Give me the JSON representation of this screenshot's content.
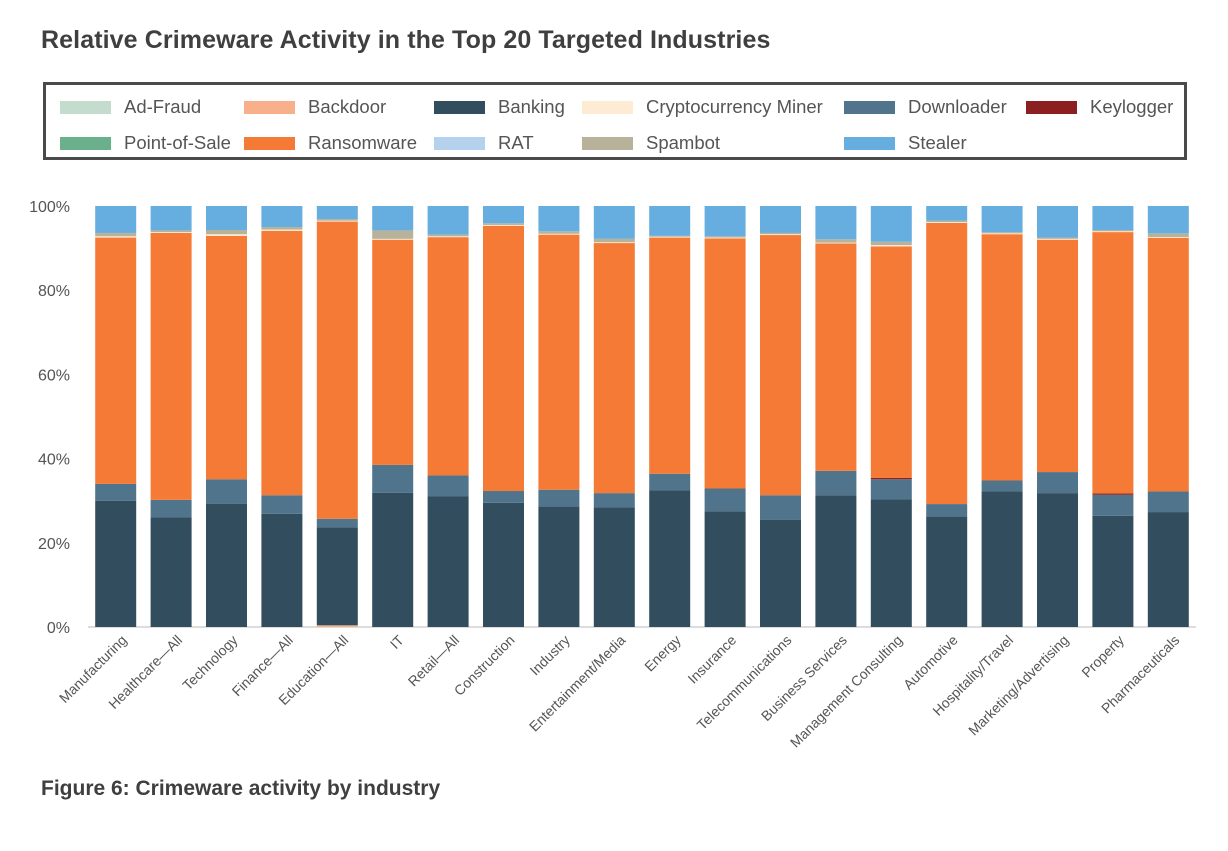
{
  "title": "Relative Crimeware Activity in the Top 20 Targeted Industries",
  "caption": "Figure 6: Crimeware activity by industry",
  "colors": {
    "Ad-Fraud": "#c3dccd",
    "Point-of-Sale": "#6ab08c",
    "Backdoor": "#f7b08a",
    "Ransomware": "#f47a36",
    "Banking": "#324d5e",
    "RAT": "#b4d1ee",
    "Cryptocurrency Miner": "#fdebd3",
    "Spambot": "#b8b29b",
    "Downloader": "#4f748c",
    "Keylogger": "#8c1f1f",
    "Stealer": "#66aee0"
  },
  "chart_data": {
    "type": "bar",
    "stacked": true,
    "title": "Relative Crimeware Activity in the Top 20 Targeted Industries",
    "xlabel": "",
    "ylabel": "",
    "ylim": [
      0,
      100
    ],
    "yticks": [
      "0%",
      "20%",
      "40%",
      "60%",
      "80%",
      "100%"
    ],
    "legend_position": "top",
    "legend_rows": [
      [
        "Ad-Fraud",
        "Backdoor",
        "Banking",
        "Cryptocurrency Miner",
        "Downloader",
        "Keylogger"
      ],
      [
        "Point-of-Sale",
        "Ransomware",
        "RAT",
        "Spambot",
        "Stealer"
      ]
    ],
    "categories": [
      "Manufacturing",
      "Healthcare—All",
      "Technology",
      "Finance—All",
      "Education—All",
      "IT",
      "Retail—All",
      "Construction",
      "Industry",
      "Entertainment/Media",
      "Energy",
      "Insurance",
      "Telecommunications",
      "Business Services",
      "Management Consulting",
      "Automotive",
      "Hospitality/Travel",
      "Marketing/Advertising",
      "Property",
      "Pharmaceuticals"
    ],
    "series": [
      {
        "name": "Backdoor",
        "values": [
          0,
          0,
          0,
          0,
          0.4,
          0,
          0,
          0,
          0,
          0,
          0,
          0,
          0,
          0,
          0,
          0,
          0,
          0,
          0,
          0
        ]
      },
      {
        "name": "Banking",
        "values": [
          30,
          26,
          29.3,
          26.9,
          23.3,
          31.9,
          31,
          29.5,
          28.6,
          28.4,
          32.5,
          27.5,
          25.5,
          31.3,
          30.3,
          26.3,
          32.2,
          31.8,
          26.4,
          27.3
        ]
      },
      {
        "name": "Downloader",
        "values": [
          4,
          4.2,
          5.8,
          4.4,
          2,
          6.6,
          5,
          2.8,
          4,
          3.4,
          3.9,
          5.4,
          5.8,
          5.8,
          4.8,
          2.9,
          2.6,
          5,
          5,
          4.9
        ]
      },
      {
        "name": "Keylogger",
        "values": [
          0,
          0,
          0,
          0,
          0,
          0,
          0,
          0,
          0,
          0,
          0,
          0,
          0,
          0,
          0.3,
          0,
          0,
          0,
          0.3,
          0
        ]
      },
      {
        "name": "Ransomware",
        "values": [
          58.5,
          63.4,
          57.8,
          62.8,
          70.6,
          53.5,
          56.6,
          63,
          60.6,
          59.4,
          56.1,
          59.4,
          61.8,
          54,
          55,
          66.8,
          58.5,
          55.2,
          62.1,
          60.2
        ]
      },
      {
        "name": "Cryptocurrency Miner",
        "values": [
          0.3,
          0.2,
          0.4,
          0.3,
          0.2,
          0.2,
          0.2,
          0.2,
          0.2,
          0.2,
          0.2,
          0.2,
          0.2,
          0.2,
          0.3,
          0.2,
          0.2,
          0.2,
          0.2,
          0.2
        ]
      },
      {
        "name": "Spambot",
        "values": [
          0.8,
          0.4,
          1,
          0.6,
          0.4,
          2,
          0.4,
          0.4,
          0.6,
          0.8,
          0.2,
          0.3,
          0.3,
          0.8,
          0.8,
          0.3,
          0.3,
          0.3,
          0.3,
          0.9
        ]
      },
      {
        "name": "Stealer",
        "values": [
          6.4,
          5.8,
          5.7,
          5,
          3.1,
          5.8,
          6.8,
          4.1,
          6,
          7.8,
          7.1,
          7.2,
          6.4,
          7.9,
          8.5,
          3.5,
          6.2,
          7.5,
          5.7,
          6.5
        ]
      }
    ]
  }
}
